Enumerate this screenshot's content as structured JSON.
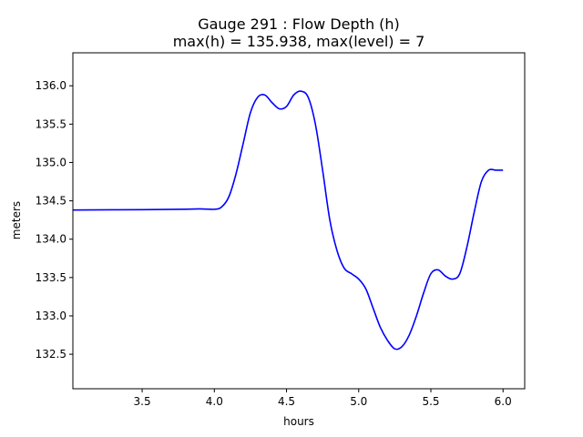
{
  "chart_data": {
    "type": "line",
    "title": "Gauge 291 : Flow Depth (h)",
    "subtitle": "max(h) = 135.938,    max(level) = 7",
    "xlabel": "hours",
    "ylabel": "meters",
    "xlim": [
      3.02,
      6.15
    ],
    "ylim": [
      132.05,
      136.43
    ],
    "xticks": [
      "3.5",
      "4.0",
      "4.5",
      "5.0",
      "5.5",
      "6.0"
    ],
    "yticks": [
      "132.5",
      "133.0",
      "133.5",
      "134.0",
      "134.5",
      "135.0",
      "135.5",
      "136.0"
    ],
    "grid": false,
    "series": [
      {
        "color": "#0000ff",
        "x": [
          3.02,
          3.5,
          3.8,
          3.9,
          4.0,
          4.05,
          4.1,
          4.15,
          4.2,
          4.25,
          4.3,
          4.35,
          4.4,
          4.45,
          4.5,
          4.55,
          4.6,
          4.65,
          4.7,
          4.75,
          4.8,
          4.85,
          4.9,
          4.95,
          5.0,
          5.05,
          5.1,
          5.15,
          5.2,
          5.25,
          5.3,
          5.35,
          5.4,
          5.45,
          5.5,
          5.55,
          5.6,
          5.65,
          5.7,
          5.75,
          5.8,
          5.85,
          5.9,
          5.95,
          6.0
        ],
        "y": [
          134.38,
          134.385,
          134.39,
          134.395,
          134.39,
          134.42,
          134.55,
          134.85,
          135.25,
          135.65,
          135.85,
          135.88,
          135.78,
          135.7,
          135.73,
          135.88,
          135.93,
          135.85,
          135.5,
          134.9,
          134.25,
          133.85,
          133.62,
          133.55,
          133.48,
          133.35,
          133.1,
          132.85,
          132.68,
          132.57,
          132.6,
          132.75,
          133.0,
          133.3,
          133.55,
          133.6,
          133.52,
          133.48,
          133.55,
          133.9,
          134.35,
          134.75,
          134.9,
          134.9,
          134.9
        ]
      }
    ]
  }
}
